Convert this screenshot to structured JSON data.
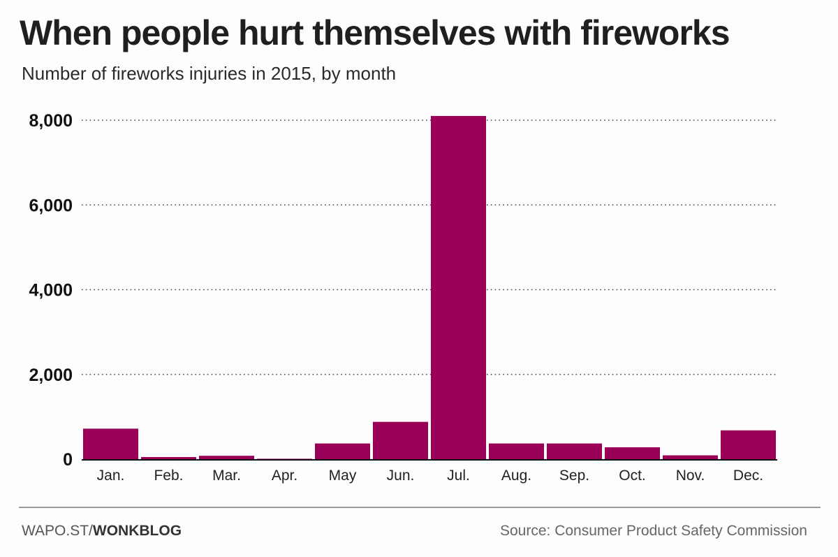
{
  "chart_data": {
    "type": "bar",
    "title": "When people hurt themselves with fireworks",
    "subtitle": "Number of fireworks injuries in 2015, by month",
    "categories": [
      "Jan.",
      "Feb.",
      "Mar.",
      "Apr.",
      "May",
      "Jun.",
      "Jul.",
      "Aug.",
      "Sep.",
      "Oct.",
      "Nov.",
      "Dec."
    ],
    "values": [
      720,
      50,
      80,
      10,
      370,
      880,
      8100,
      370,
      370,
      280,
      90,
      680
    ],
    "ylim": [
      0,
      8000
    ],
    "yticks": [
      0,
      2000,
      4000,
      6000,
      8000
    ],
    "ytick_labels": [
      "0",
      "2,000",
      "4,000",
      "6,000",
      "8,000"
    ],
    "grid": true,
    "bar_color": "#9b0058",
    "xlabel": "",
    "ylabel": ""
  },
  "footer": {
    "credit_prefix": "WAPO.ST/",
    "credit_brand": "WONKBLOG",
    "source": "Source: Consumer Product Safety Commission"
  }
}
